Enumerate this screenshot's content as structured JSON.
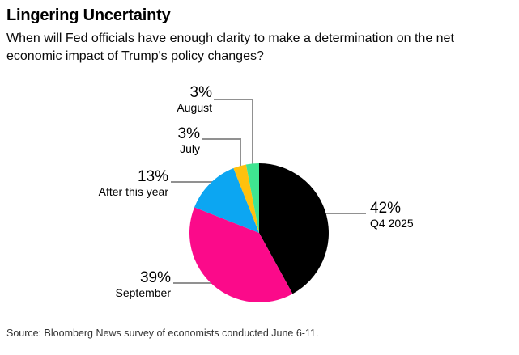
{
  "header": {
    "title": "Lingering Uncertainty",
    "subtitle_line1": "When will Fed officials have enough clarity to make a determination on the net",
    "subtitle_line2": "economic impact of Trump's policy changes?"
  },
  "chart_data": {
    "type": "pie",
    "title": "Lingering Uncertainty",
    "subtitle": "When will Fed officials have enough clarity to make a determination on the net economic impact of Trump's policy changes?",
    "start_angle_deg": 0,
    "direction": "clockwise",
    "legend_position": "none (direct callout labels with leader lines)",
    "leader_line_color": "#919191",
    "slices": [
      {
        "category": "Q4 2025",
        "value": 42,
        "pct_label": "42%",
        "color": "#000000"
      },
      {
        "category": "September",
        "value": 39,
        "pct_label": "39%",
        "color": "#fb0a8a"
      },
      {
        "category": "After this year",
        "value": 13,
        "pct_label": "13%",
        "color": "#0ca6f2"
      },
      {
        "category": "July",
        "value": 3,
        "pct_label": "3%",
        "color": "#ffc10e"
      },
      {
        "category": "August",
        "value": 3,
        "pct_label": "3%",
        "color": "#3fe591"
      }
    ]
  },
  "source": "Source: Bloomberg News survey of economists conducted June 6-11."
}
